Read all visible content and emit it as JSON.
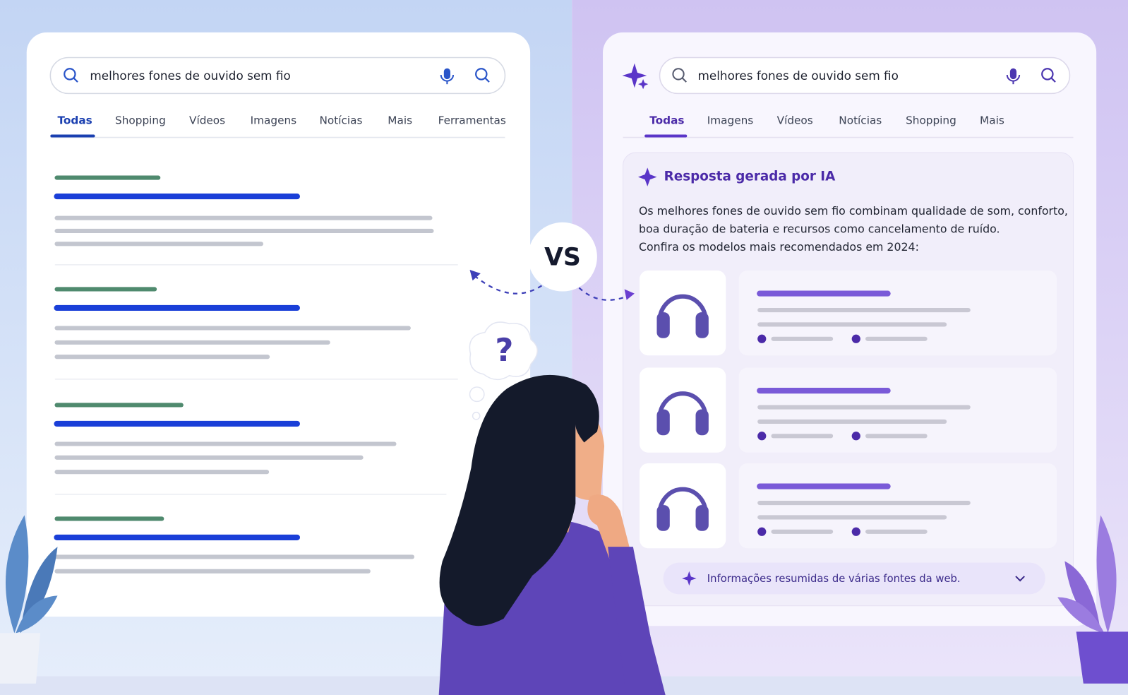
{
  "left_panel": {
    "search_query": "melhores fones de ouvido sem fio",
    "tabs": [
      "Todas",
      "Shopping",
      "Vídeos",
      "Imagens",
      "Notícias",
      "Mais",
      "Ferramentas"
    ]
  },
  "vs_badge": "VS",
  "thought_bubble": "?",
  "right_panel": {
    "search_query": "melhores fones de ouvido sem fio",
    "tabs": [
      "Todas",
      "Imagens",
      "Vídeos",
      "Notícias",
      "Shopping",
      "Mais"
    ],
    "ai_answer": {
      "heading": "Resposta gerada por IA",
      "text_lines": [
        "Os melhores fones de ouvido sem fio combinam qualidade de som, conforto,",
        "boa duração de bateria e recursos como cancelamento de ruído.",
        "Confira os modelos mais recomendados em 2024:"
      ],
      "footer": "Informações resumidas de várias fontes da web."
    }
  }
}
